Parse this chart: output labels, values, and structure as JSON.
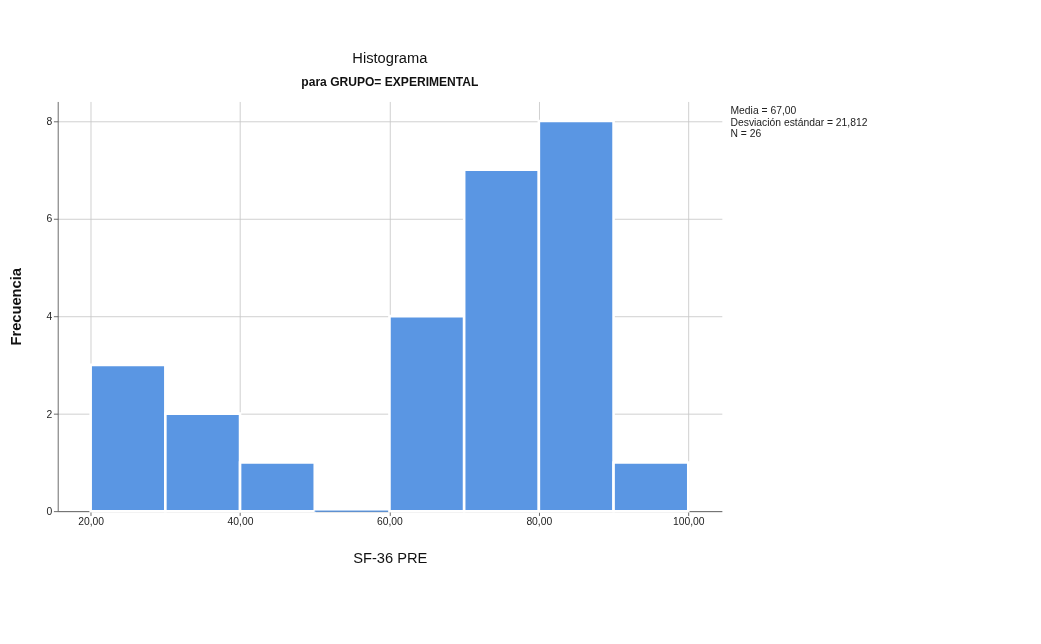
{
  "chart_data": {
    "type": "histogram",
    "title": "Histograma",
    "subtitle": "para GRUPO= EXPERIMENTAL",
    "xlabel": "SF-36 PRE",
    "ylabel": "Frecuencia",
    "bins": [
      20,
      30,
      40,
      50,
      60,
      70,
      80,
      90,
      100
    ],
    "values": [
      3,
      2,
      1,
      0,
      4,
      7,
      8,
      1
    ],
    "color": "#5a96e3",
    "xlim": [
      15.6,
      104.5
    ],
    "xticks": [
      {
        "value": 20,
        "label": "20,00"
      },
      {
        "value": 40,
        "label": "40,00"
      },
      {
        "value": 60,
        "label": "60,00"
      },
      {
        "value": 80,
        "label": "80,00"
      },
      {
        "value": 100,
        "label": "100,00"
      }
    ],
    "ylim": [
      0,
      8.4
    ],
    "yticks": [
      0,
      2,
      4,
      6,
      8
    ],
    "grid": true,
    "annotations": [
      "Media = 67,00",
      "Desviación estándar = 21,812",
      "N = 26"
    ]
  }
}
